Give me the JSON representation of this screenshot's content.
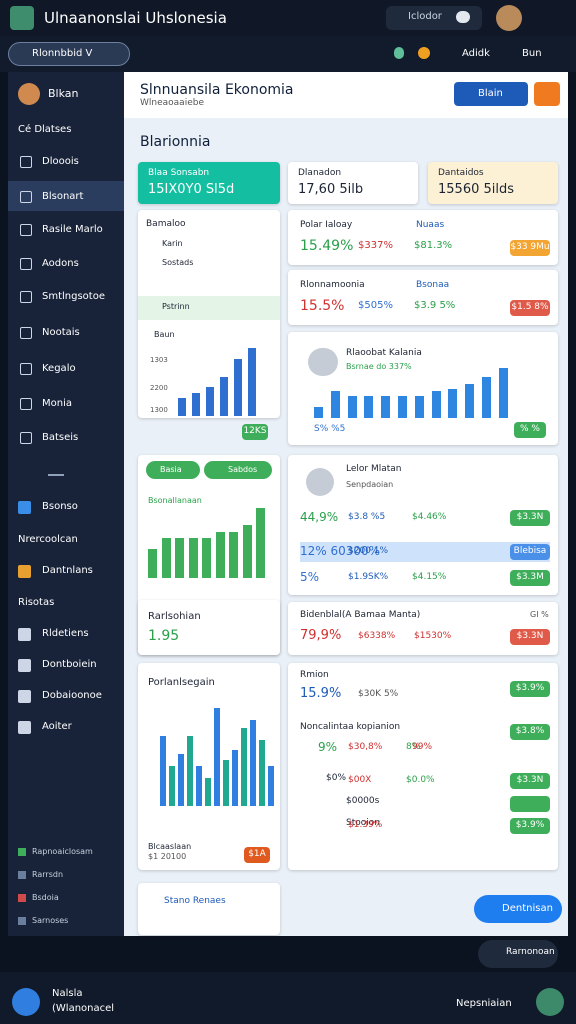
{
  "header": {
    "title": "Ulnaanonslai Uhslonesia",
    "search": "Iclodor",
    "workspace": "Rlonnbbid V",
    "actions": [
      "Adidk",
      "Bun"
    ]
  },
  "sidebar": {
    "user": "Blkan",
    "section": "Cé Dlatses",
    "nav": [
      "Dlooois",
      "Blsonart",
      "Rasile Marlo",
      "Aodons",
      "Smtlngsotoe",
      "Nootais",
      "Kegalo",
      "Monia",
      "Batseis"
    ],
    "group": [
      "Bsonso",
      "Nrercoolcan",
      "Dantnlans",
      "Risotas",
      "Rldetiens",
      "Dontboiein",
      "Dobaioonoe",
      "Aoiter"
    ],
    "footer": [
      "Rapnoaiclosam",
      "Rarrsdn",
      "Bsdoia",
      "Sarnoses"
    ]
  },
  "main": {
    "title": "Slnnuansila Ekonomia",
    "subtitle": "Wlneaoaaiebe",
    "button": "Blain",
    "section": "Blarionnia",
    "stats": [
      {
        "label": "Blaa Sonsabn",
        "value": "15IX0Y0 Sl5d"
      },
      {
        "label": "Dlanadon",
        "value": "17,60 5ilb"
      },
      {
        "label": "Dantaidos",
        "value": "15560 5ilds"
      }
    ],
    "list_card": {
      "title": "Bamaloo",
      "rows": [
        "Karin",
        "Sostads",
        "Pstrinn"
      ],
      "chart_label": "Baun",
      "axis": [
        "1303",
        "2200",
        "1300"
      ],
      "values": [
        14,
        18,
        22,
        30,
        44,
        52
      ],
      "badge": "12KS"
    },
    "metric_a": {
      "title": "Polar Ialoay",
      "tag": "Nuaas",
      "v1": "15.49%",
      "v2": "$337%",
      "v3": "$81.3%",
      "badge": "$33 9Mu"
    },
    "metric_b": {
      "title": "Rlonnamoonia",
      "tag": "Bsonaa",
      "v1": "15.5%",
      "v2": "$505%",
      "v3": "$3.9 5%",
      "badge": "$1.5 8%"
    },
    "trend_card": {
      "title": "Rlaoobat Kalania",
      "subtitle": "Bsrnae do 337%",
      "values": [
        12,
        30,
        24,
        24,
        24,
        24,
        24,
        30,
        32,
        38,
        46,
        56
      ],
      "left": "S% %5",
      "badge": "% %"
    },
    "green_card": {
      "pills": [
        "Basia",
        "Sabdos"
      ],
      "label": "Bsonallanaan",
      "values": [
        26,
        36,
        36,
        36,
        36,
        42,
        42,
        48,
        64
      ]
    },
    "small_card": {
      "title": "Rarlsohian",
      "value": "1.95"
    },
    "table_card": {
      "title": "Lelor Mlatan",
      "subtitle": "Senpdaoian",
      "rows": [
        [
          "44,9%",
          "$3.8 %5",
          "$4.46%",
          "$3.3N"
        ],
        [
          "12% 60300%",
          "$200 1%",
          "",
          "Blebisa"
        ],
        [
          "5%",
          "$1.9SK%",
          "$4.15%",
          "$3.3M"
        ]
      ]
    },
    "red_card": {
      "title": "Bidenblal(A Bamaa Manta)",
      "tag": "GI %",
      "v1": "79,9%",
      "v2": "$6338%",
      "v3": "$1530%",
      "badge": "$3.3N"
    },
    "group_card": {
      "title": "Porlanlsegain",
      "blue": [
        70,
        52,
        40,
        98,
        56,
        86,
        40
      ],
      "green": [
        40,
        70,
        28,
        46,
        78,
        66
      ],
      "footer": "Blcaaslaan",
      "amount": "$1 20100",
      "badge": "$1A"
    },
    "list_card2": {
      "title": "Rmion",
      "v1": "15.9%",
      "v2": "$30K 5%",
      "badge": "$3.9%",
      "subtitle": "Noncalintaa kopianion",
      "badge2": "$3.8%",
      "rows": [
        [
          "9%",
          "$30,8%",
          "8%",
          "99%"
        ],
        [
          "$0%",
          "$00X",
          "$0.0%",
          "$3.3N"
        ],
        [
          "$0000s",
          "",
          "",
          ""
        ],
        [
          "Stooion",
          "$1.39%",
          "",
          "$3.9%"
        ]
      ]
    },
    "bottom_card": "Stano Renaes",
    "action": "Dentnisan"
  },
  "navbar": {
    "pill": "Rarnonoan"
  },
  "taskbar": {
    "app": "Nalsla",
    "sub": "(Wlanonacel",
    "right": "Nepsniaian"
  }
}
